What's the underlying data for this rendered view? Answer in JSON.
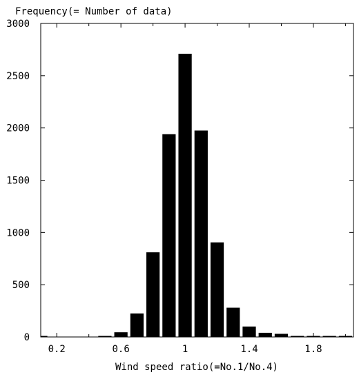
{
  "chart_data": {
    "type": "bar",
    "title": "",
    "ylabel": "Frequency(= Number of data)",
    "xlabel": "Wind speed ratio(=No.1/No.4)",
    "xlim": [
      0.1,
      2.05
    ],
    "ylim": [
      0,
      3000
    ],
    "x_ticks": [
      "0.2",
      "0.6",
      "1",
      "1.4",
      "1.8"
    ],
    "y_ticks": [
      "0",
      "500",
      "1000",
      "1500",
      "2000",
      "2500",
      "3000"
    ],
    "bin_width": 0.1,
    "x": [
      0.1,
      0.2,
      0.3,
      0.4,
      0.5,
      0.6,
      0.7,
      0.8,
      0.9,
      1.0,
      1.1,
      1.2,
      1.3,
      1.4,
      1.5,
      1.6,
      1.7,
      1.8,
      1.9,
      2.0
    ],
    "values": [
      8,
      0,
      0,
      0,
      8,
      45,
      225,
      810,
      1940,
      2710,
      1975,
      905,
      280,
      100,
      40,
      30,
      10,
      8,
      5,
      5
    ],
    "grid": false,
    "legend": "none"
  }
}
